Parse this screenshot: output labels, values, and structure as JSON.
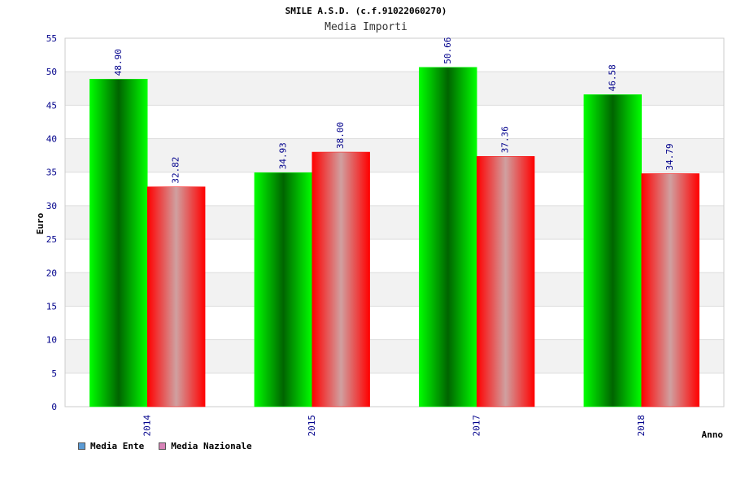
{
  "chart_data": {
    "type": "bar",
    "title": "SMILE A.S.D. (c.f.91022060270)",
    "subtitle": "Media Importi",
    "xlabel": "Anno",
    "ylabel": "Euro",
    "categories": [
      "2014",
      "2015",
      "2017",
      "2018"
    ],
    "ylim": [
      0,
      55
    ],
    "yticks": [
      0,
      5,
      10,
      15,
      20,
      25,
      30,
      35,
      40,
      45,
      50,
      55
    ],
    "grid": true,
    "legend_position": "bottom-left",
    "series": [
      {
        "name": "Media Ente",
        "values": [
          48.9,
          34.93,
          50.66,
          46.58
        ],
        "labels": [
          "48.90",
          "34.93",
          "50.66",
          "46.58"
        ],
        "bar_edge_color": "#00ff00",
        "bar_center_color": "#006400",
        "legend_color": "#5b9bd5"
      },
      {
        "name": "Media Nazionale",
        "values": [
          32.82,
          38.0,
          37.36,
          34.79
        ],
        "labels": [
          "32.82",
          "38.00",
          "37.36",
          "34.79"
        ],
        "bar_edge_color": "#ff0000",
        "bar_center_color": "#d0a0a0",
        "legend_color": "#d884b8"
      }
    ],
    "colors": {
      "axis_text": "#00008b",
      "grid_band": "#f2f2f2",
      "grid_line": "#dddddd",
      "title_text": "#000000",
      "subtitle_text": "#333333"
    }
  }
}
